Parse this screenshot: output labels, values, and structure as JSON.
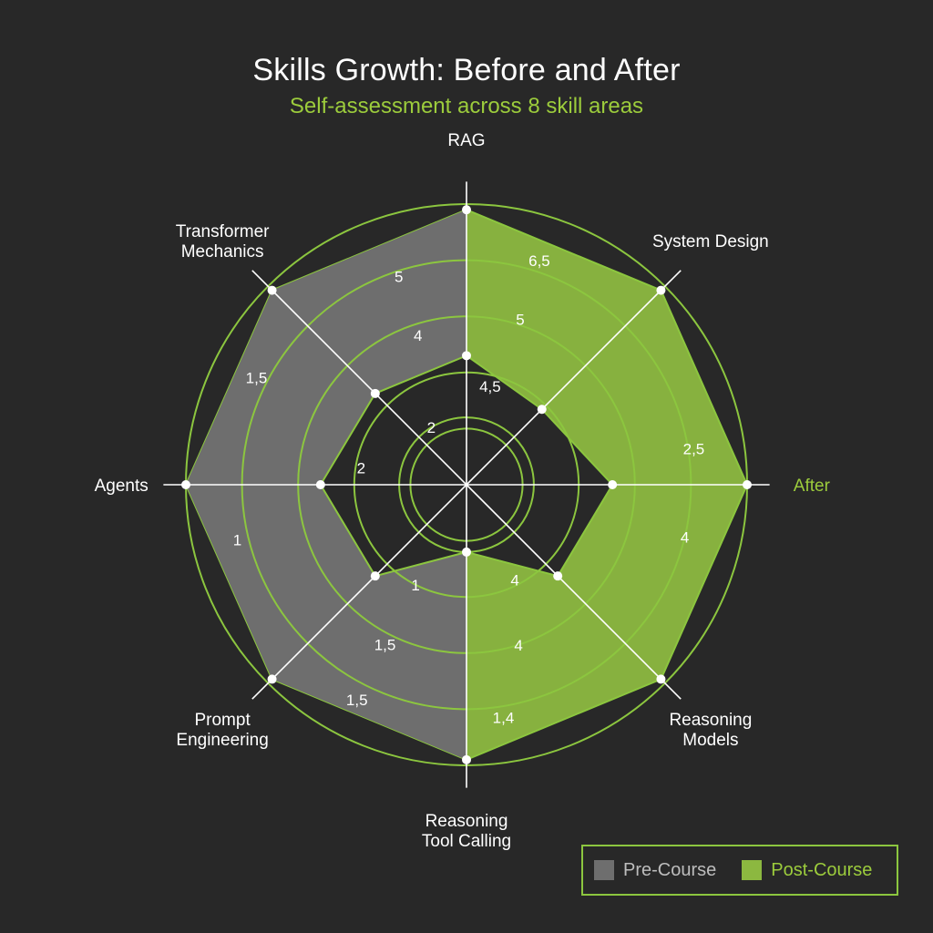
{
  "title": "Skills Growth: Before and After",
  "subtitle": "Self-assessment across 8 skill areas",
  "colors": {
    "background": "#282828",
    "accent": "#9ccc3c",
    "post_fill": "#8cb840",
    "pre_fill": "#6e6e6e",
    "grid": "#8cc63f",
    "axis": "#ffffff"
  },
  "chart_data": {
    "type": "radar",
    "title": "Skills Growth: Before and After",
    "subtitle": "Self-assessment across 8 skill areas",
    "axes": [
      "RAG",
      "System Design",
      "After",
      "Reasoning Models",
      "Reasoning Tool Calling",
      "Prompt Engineering",
      "Agents",
      "Transformer Mechanics"
    ],
    "axis_label_lines": [
      [
        "RAG"
      ],
      [
        "System Design"
      ],
      [
        "After"
      ],
      [
        "Reasoning",
        "Models"
      ],
      [
        "Reasoning",
        "Tool Calling"
      ],
      [
        "Prompt",
        "Engineering"
      ],
      [
        "Agents"
      ],
      [
        "Transformer",
        "Mechanics"
      ]
    ],
    "rlim": [
      0,
      5
    ],
    "grid_rings": [
      1,
      2,
      3,
      4,
      5
    ],
    "series": [
      {
        "name": "Pre-Course",
        "values": [
          2.3,
          1.9,
          2.6,
          2.3,
          1.2,
          2.3,
          2.6,
          2.3
        ]
      },
      {
        "name": "Post-Course",
        "values": [
          4.9,
          4.9,
          5.0,
          4.9,
          4.9,
          4.9,
          5.0,
          4.9
        ]
      }
    ],
    "annotations": [
      {
        "text": "5",
        "axis": 7.6,
        "r": 3.9
      },
      {
        "text": "4",
        "axis": 7.6,
        "r": 2.8
      },
      {
        "text": "2",
        "axis": 7.3,
        "r": 1.2
      },
      {
        "text": "6,5",
        "axis": 0.4,
        "r": 4.2
      },
      {
        "text": "5",
        "axis": 0.4,
        "r": 3.1
      },
      {
        "text": "4,5",
        "axis": 0.3,
        "r": 1.8
      },
      {
        "text": "2,5",
        "axis": 1.8,
        "r": 4.1
      },
      {
        "text": "4",
        "axis": 2.3,
        "r": 4.0
      },
      {
        "text": "4",
        "axis": 3.4,
        "r": 1.9
      },
      {
        "text": "4",
        "axis": 3.6,
        "r": 3.0
      },
      {
        "text": "1,4",
        "axis": 3.8,
        "r": 4.2
      },
      {
        "text": "1,5",
        "axis": 4.6,
        "r": 4.3
      },
      {
        "text": "1,5",
        "axis": 4.6,
        "r": 3.2
      },
      {
        "text": "1",
        "axis": 4.6,
        "r": 2.0
      },
      {
        "text": "1",
        "axis": 5.7,
        "r": 4.2
      },
      {
        "text": "2",
        "axis": 6.2,
        "r": 1.9
      },
      {
        "text": "1,5",
        "axis": 6.6,
        "r": 4.2
      }
    ]
  },
  "legend": {
    "pre_label": "Pre-Course",
    "post_label": "Post-Course"
  }
}
